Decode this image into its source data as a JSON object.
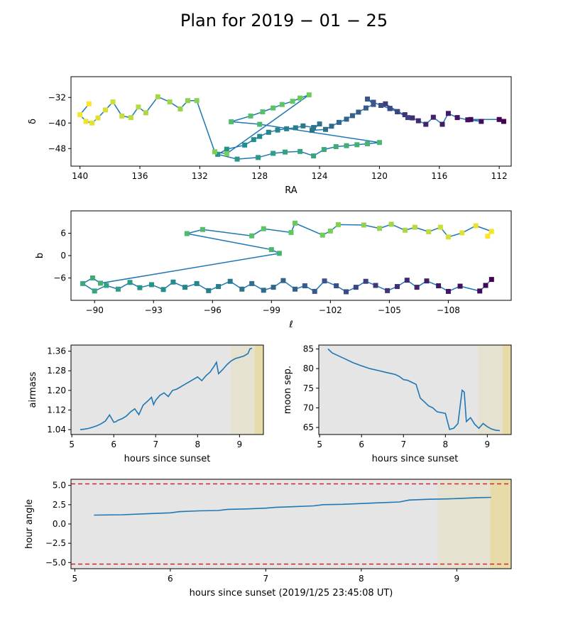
{
  "figure": {
    "title": "Plan for 2019 − 01 − 25",
    "colors": {
      "line": "#1f77b4",
      "night_bg": "#e5e5e5",
      "twilight1": "#e6e2d1",
      "twilight2": "#e6dba9",
      "limit_line": "#d62728",
      "axis": "#000000"
    }
  },
  "chart_data": [
    {
      "type": "scatter",
      "panel": "ra-dec",
      "xlabel": "RA",
      "ylabel": "δ",
      "xlim": [
        140.6,
        111.2
      ],
      "ylim": [
        -53.5,
        -25.5
      ],
      "xticks": [
        140,
        136,
        132,
        128,
        124,
        120,
        116,
        112
      ],
      "yticks": [
        -32,
        -40,
        -48
      ],
      "colormap": "viridis (later observations darker)",
      "markers": "squares colored by observation order, connected by line",
      "points": [
        [
          111.7,
          -39.5
        ],
        [
          112.0,
          -38.9
        ],
        [
          113.9,
          -38.9
        ],
        [
          113.2,
          -39.5
        ],
        [
          114.1,
          -39.0
        ],
        [
          114.8,
          -38.3
        ],
        [
          115.4,
          -37.0
        ],
        [
          115.8,
          -40.4
        ],
        [
          116.4,
          -38.2
        ],
        [
          116.9,
          -40.4
        ],
        [
          117.4,
          -39.3
        ],
        [
          117.8,
          -38.4
        ],
        [
          118.3,
          -37.4
        ],
        [
          118.8,
          -36.4
        ],
        [
          119.3,
          -35.4
        ],
        [
          119.6,
          -34.0
        ],
        [
          118.1,
          -38.3
        ],
        [
          118.8,
          -36.5
        ],
        [
          119.3,
          -35.5
        ],
        [
          119.9,
          -34.5
        ],
        [
          120.4,
          -33.5
        ],
        [
          120.8,
          -32.5
        ],
        [
          120.4,
          -34.2
        ],
        [
          120.9,
          -35.3
        ],
        [
          121.4,
          -36.6
        ],
        [
          121.8,
          -37.7
        ],
        [
          122.2,
          -38.8
        ],
        [
          122.7,
          -39.8
        ],
        [
          123.2,
          -41.0
        ],
        [
          123.6,
          -42.0
        ],
        [
          124.5,
          -42.3
        ],
        [
          124.0,
          -40.3
        ],
        [
          124.4,
          -41.4
        ],
        [
          125.1,
          -40.9
        ],
        [
          125.6,
          -41.5
        ],
        [
          126.2,
          -41.8
        ],
        [
          126.8,
          -42.2
        ],
        [
          127.4,
          -42.9
        ],
        [
          128.0,
          -44.2
        ],
        [
          128.4,
          -45.2
        ],
        [
          129.0,
          -46.9
        ],
        [
          130.2,
          -48.2
        ],
        [
          130.8,
          -49.8
        ],
        [
          129.5,
          -51.3
        ],
        [
          128.1,
          -50.8
        ],
        [
          127.1,
          -49.5
        ],
        [
          126.3,
          -49.1
        ],
        [
          125.3,
          -48.9
        ],
        [
          124.4,
          -50.3
        ],
        [
          123.7,
          -48.3
        ],
        [
          122.9,
          -47.4
        ],
        [
          122.2,
          -47.1
        ],
        [
          121.5,
          -46.8
        ],
        [
          120.8,
          -46.5
        ],
        [
          120.0,
          -46.1
        ],
        [
          128.0,
          -40.4
        ],
        [
          129.9,
          -39.6
        ],
        [
          128.6,
          -37.8
        ],
        [
          127.8,
          -36.5
        ],
        [
          127.1,
          -35.3
        ],
        [
          126.5,
          -34.2
        ],
        [
          125.8,
          -33.2
        ],
        [
          125.3,
          -32.2
        ],
        [
          124.7,
          -31.2
        ],
        [
          130.2,
          -49.6
        ],
        [
          131.0,
          -49.0
        ],
        [
          132.2,
          -33.0
        ],
        [
          132.8,
          -33.0
        ],
        [
          133.3,
          -35.6
        ],
        [
          134.0,
          -33.4
        ],
        [
          134.8,
          -31.8
        ],
        [
          135.6,
          -36.8
        ],
        [
          136.1,
          -35.0
        ],
        [
          136.6,
          -38.3
        ],
        [
          137.2,
          -37.8
        ],
        [
          137.8,
          -33.4
        ],
        [
          138.3,
          -35.9
        ],
        [
          138.8,
          -38.4
        ],
        [
          139.2,
          -40.0
        ],
        [
          139.6,
          -39.5
        ],
        [
          140.0,
          -37.4
        ],
        [
          139.4,
          -34.0
        ]
      ]
    },
    {
      "type": "scatter",
      "panel": "galactic",
      "xlabel": "ℓ",
      "ylabel": "b",
      "xlim": [
        -88.8,
        -111.2
      ],
      "ylim": [
        -12.0,
        12.0
      ],
      "xticks": [
        -90,
        -93,
        -96,
        -99,
        -102,
        -105,
        -108
      ],
      "yticks": [
        6,
        0,
        -6
      ],
      "colormap": "viridis (later observations darker)",
      "markers": "squares colored by observation order, connected by line",
      "points": [
        [
          -110.2,
          -6.4
        ],
        [
          -109.9,
          -8.0
        ],
        [
          -109.6,
          -9.5
        ],
        [
          -108.6,
          -8.2
        ],
        [
          -108.0,
          -9.6
        ],
        [
          -107.5,
          -8.1
        ],
        [
          -106.9,
          -6.8
        ],
        [
          -106.4,
          -8.5
        ],
        [
          -105.9,
          -6.6
        ],
        [
          -105.4,
          -8.3
        ],
        [
          -104.9,
          -9.4
        ],
        [
          -104.3,
          -8.0
        ],
        [
          -103.8,
          -6.9
        ],
        [
          -103.3,
          -8.5
        ],
        [
          -102.8,
          -9.7
        ],
        [
          -102.3,
          -8.1
        ],
        [
          -101.7,
          -6.8
        ],
        [
          -101.2,
          -9.6
        ],
        [
          -100.7,
          -8.1
        ],
        [
          -100.2,
          -9.0
        ],
        [
          -99.6,
          -6.7
        ],
        [
          -99.1,
          -8.5
        ],
        [
          -98.6,
          -9.3
        ],
        [
          -98.0,
          -7.5
        ],
        [
          -97.5,
          -9.0
        ],
        [
          -96.9,
          -6.9
        ],
        [
          -96.3,
          -8.3
        ],
        [
          -95.8,
          -9.4
        ],
        [
          -95.2,
          -7.5
        ],
        [
          -94.6,
          -8.5
        ],
        [
          -94.0,
          -7.1
        ],
        [
          -93.5,
          -9.1
        ],
        [
          -92.9,
          -7.8
        ],
        [
          -92.3,
          -8.6
        ],
        [
          -91.8,
          -7.2
        ],
        [
          -91.2,
          -9.0
        ],
        [
          -90.6,
          -8.0
        ],
        [
          -90.0,
          -9.5
        ],
        [
          -89.4,
          -7.5
        ],
        [
          -89.9,
          -6.0
        ],
        [
          -90.3,
          -7.4
        ],
        [
          -99.4,
          0.6
        ],
        [
          -99.0,
          1.6
        ],
        [
          -94.7,
          5.9
        ],
        [
          -95.5,
          7.0
        ],
        [
          -98.0,
          5.3
        ],
        [
          -98.6,
          7.2
        ],
        [
          -100.0,
          6.2
        ],
        [
          -100.2,
          8.7
        ],
        [
          -101.6,
          5.5
        ],
        [
          -102.0,
          6.6
        ],
        [
          -102.4,
          8.3
        ],
        [
          -103.7,
          8.2
        ],
        [
          -104.5,
          7.3
        ],
        [
          -105.1,
          8.4
        ],
        [
          -105.8,
          6.8
        ],
        [
          -106.3,
          7.6
        ],
        [
          -107.0,
          6.4
        ],
        [
          -107.6,
          7.6
        ],
        [
          -108.0,
          5.0
        ],
        [
          -108.7,
          6.1
        ],
        [
          -109.4,
          8.0
        ],
        [
          -110.2,
          6.5
        ],
        [
          -110.0,
          5.2
        ]
      ]
    },
    {
      "type": "line",
      "panel": "airmass",
      "xlabel": "hours since sunset",
      "ylabel": "airmass",
      "xlim": [
        4.98,
        9.57
      ],
      "ylim": [
        1.02,
        1.385
      ],
      "xticks": [
        5,
        6,
        7,
        8,
        9
      ],
      "yticks": [
        1.04,
        1.12,
        1.2,
        1.28,
        1.36
      ],
      "shading": [
        {
          "from": 4.98,
          "to": 8.78,
          "kind": "night"
        },
        {
          "from": 8.78,
          "to": 9.36,
          "kind": "twilight"
        },
        {
          "from": 9.36,
          "to": 9.57,
          "kind": "twilight-late"
        }
      ],
      "x": [
        5.2,
        5.3,
        5.4,
        5.5,
        5.6,
        5.7,
        5.8,
        5.9,
        6.0,
        6.05,
        6.1,
        6.2,
        6.3,
        6.4,
        6.5,
        6.6,
        6.7,
        6.8,
        6.9,
        6.95,
        7.0,
        7.1,
        7.2,
        7.3,
        7.4,
        7.5,
        7.6,
        7.7,
        7.8,
        7.9,
        8.0,
        8.1,
        8.2,
        8.3,
        8.4,
        8.45,
        8.5,
        8.6,
        8.7,
        8.8,
        8.9,
        9.0,
        9.1,
        9.2,
        9.25,
        9.3
      ],
      "y": [
        1.04,
        1.042,
        1.045,
        1.05,
        1.056,
        1.064,
        1.075,
        1.1,
        1.07,
        1.072,
        1.078,
        1.085,
        1.095,
        1.112,
        1.125,
        1.101,
        1.14,
        1.155,
        1.172,
        1.142,
        1.16,
        1.18,
        1.19,
        1.175,
        1.2,
        1.205,
        1.215,
        1.225,
        1.235,
        1.245,
        1.255,
        1.24,
        1.26,
        1.275,
        1.3,
        1.315,
        1.268,
        1.285,
        1.305,
        1.32,
        1.33,
        1.335,
        1.34,
        1.35,
        1.37,
        1.372
      ]
    },
    {
      "type": "line",
      "panel": "moon-sep",
      "xlabel": "hours since sunset",
      "ylabel": "moon sep.",
      "xlim": [
        4.98,
        9.57
      ],
      "ylim": [
        63.2,
        86.0
      ],
      "xticks": [
        5,
        6,
        7,
        8,
        9
      ],
      "yticks": [
        65,
        70,
        75,
        80,
        85
      ],
      "shading": [
        {
          "from": 4.98,
          "to": 8.78,
          "kind": "night"
        },
        {
          "from": 8.78,
          "to": 9.36,
          "kind": "twilight"
        },
        {
          "from": 9.36,
          "to": 9.57,
          "kind": "twilight-late"
        }
      ],
      "x": [
        5.2,
        5.3,
        5.4,
        5.6,
        5.8,
        6.0,
        6.2,
        6.4,
        6.6,
        6.8,
        6.9,
        7.0,
        7.1,
        7.2,
        7.3,
        7.4,
        7.5,
        7.6,
        7.7,
        7.8,
        7.9,
        8.0,
        8.1,
        8.2,
        8.3,
        8.4,
        8.45,
        8.5,
        8.55,
        8.6,
        8.7,
        8.8,
        8.9,
        9.0,
        9.1,
        9.2,
        9.3
      ],
      "y": [
        85.0,
        84.0,
        83.5,
        82.5,
        81.5,
        80.7,
        80.0,
        79.5,
        79.0,
        78.5,
        78.0,
        77.2,
        77.0,
        76.5,
        76.0,
        72.5,
        71.5,
        70.5,
        70.0,
        69.0,
        68.8,
        68.6,
        64.5,
        64.8,
        66.0,
        74.5,
        74.0,
        66.5,
        67.0,
        67.5,
        65.8,
        64.8,
        66.0,
        65.2,
        64.6,
        64.3,
        64.2
      ]
    },
    {
      "type": "line",
      "panel": "hour-angle",
      "xlabel": "hours since sunset (2019/1/25 23:45:08 UT)",
      "ylabel": "hour angle",
      "xlim": [
        4.96,
        9.57
      ],
      "ylim": [
        -5.8,
        5.8
      ],
      "xticks": [
        5,
        6,
        7,
        8,
        9
      ],
      "yticks": [
        5.0,
        2.5,
        0.0,
        -2.5,
        -5.0
      ],
      "limits": [
        5.2,
        -5.2
      ],
      "shading": [
        {
          "from": 4.96,
          "to": 8.8,
          "kind": "night"
        },
        {
          "from": 8.8,
          "to": 9.35,
          "kind": "twilight"
        },
        {
          "from": 9.35,
          "to": 9.57,
          "kind": "twilight-late"
        }
      ],
      "x": [
        5.2,
        5.5,
        5.8,
        6.0,
        6.1,
        6.3,
        6.5,
        6.6,
        6.8,
        7.0,
        7.1,
        7.3,
        7.5,
        7.6,
        7.8,
        8.0,
        8.2,
        8.4,
        8.5,
        8.7,
        8.9,
        9.0,
        9.2,
        9.36
      ],
      "y": [
        1.15,
        1.2,
        1.35,
        1.45,
        1.6,
        1.7,
        1.75,
        1.9,
        1.95,
        2.05,
        2.15,
        2.25,
        2.35,
        2.5,
        2.55,
        2.65,
        2.75,
        2.85,
        3.1,
        3.2,
        3.25,
        3.3,
        3.4,
        3.45
      ]
    }
  ],
  "labels": {
    "ra_x": "RA",
    "ra_y": "δ",
    "gal_x": "ℓ",
    "gal_y": "b",
    "am_x": "hours since sunset",
    "am_y": "airmass",
    "ms_x": "hours since sunset",
    "ms_y": "moon sep.",
    "ha_x": "hours since sunset (2019/1/25 23:45:08 UT)",
    "ha_y": "hour angle"
  },
  "tick_labels": {
    "ra_x": [
      "140",
      "136",
      "132",
      "128",
      "124",
      "120",
      "116",
      "112"
    ],
    "ra_y": [
      "−32",
      "−40",
      "−48"
    ],
    "gal_x": [
      "−90",
      "−93",
      "−96",
      "−99",
      "−102",
      "−105",
      "−108"
    ],
    "gal_y": [
      "6",
      "0",
      "−6"
    ],
    "am_x": [
      "5",
      "6",
      "7",
      "8",
      "9"
    ],
    "am_y": [
      "1.04",
      "1.12",
      "1.20",
      "1.28",
      "1.36"
    ],
    "ms_x": [
      "5",
      "6",
      "7",
      "8",
      "9"
    ],
    "ms_y": [
      "65",
      "70",
      "75",
      "80",
      "85"
    ],
    "ha_x": [
      "5",
      "6",
      "7",
      "8",
      "9"
    ],
    "ha_y": [
      "5.0",
      "2.5",
      "0.0",
      "−2.5",
      "−5.0"
    ]
  }
}
